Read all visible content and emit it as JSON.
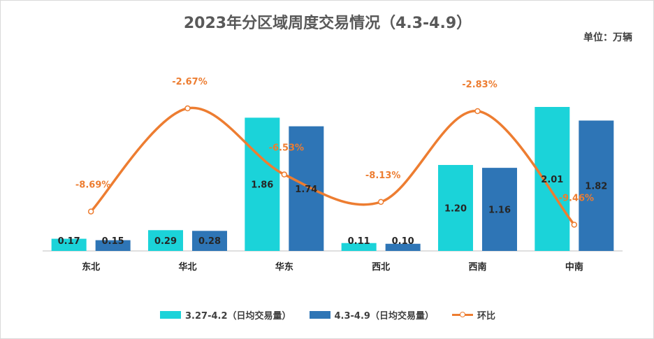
{
  "title": "2023年分区域周度交易情况（4.3-4.9）",
  "unit": "单位：万辆",
  "colors": {
    "series1": "#1BD3D9",
    "series2": "#2E75B6",
    "line": "#ED7D31",
    "axis": "#BFBFBF"
  },
  "legend": [
    {
      "label": "3.27-4.2（日均交易量）",
      "icon": "bar-swatch-cyan"
    },
    {
      "label": "4.3-4.9（日均交易量）",
      "icon": "bar-swatch-blue"
    },
    {
      "label": "环比",
      "icon": "line-marker-orange"
    }
  ],
  "chart_data": {
    "type": "bar",
    "categories": [
      "东北",
      "华北",
      "华东",
      "西北",
      "西南",
      "中南"
    ],
    "series": [
      {
        "name": "3.27-4.2（日均交易量）",
        "type": "bar",
        "values": [
          0.17,
          0.29,
          1.86,
          0.11,
          1.2,
          2.01
        ],
        "labels": [
          "0.17",
          "0.29",
          "1.86",
          "0.11",
          "1.20",
          "2.01"
        ]
      },
      {
        "name": "4.3-4.9（日均交易量）",
        "type": "bar",
        "values": [
          0.15,
          0.28,
          1.74,
          0.1,
          1.16,
          1.82
        ],
        "labels": [
          "0.15",
          "0.28",
          "1.74",
          "0.10",
          "1.16",
          "1.82"
        ]
      },
      {
        "name": "环比",
        "type": "line",
        "smooth": true,
        "values": [
          -8.69,
          -2.67,
          -6.53,
          -8.13,
          -2.83,
          -9.46
        ],
        "labels": [
          "-8.69%",
          "-2.67%",
          "-6.53%",
          "-8.13%",
          "-2.83%",
          "-9.46%"
        ]
      }
    ],
    "bar_ylim": [
      0,
      2.1
    ],
    "line_ylim": [
      -11.4,
      -1.2
    ],
    "axes_visible": false,
    "grid": false,
    "legend_position": "bottom"
  }
}
